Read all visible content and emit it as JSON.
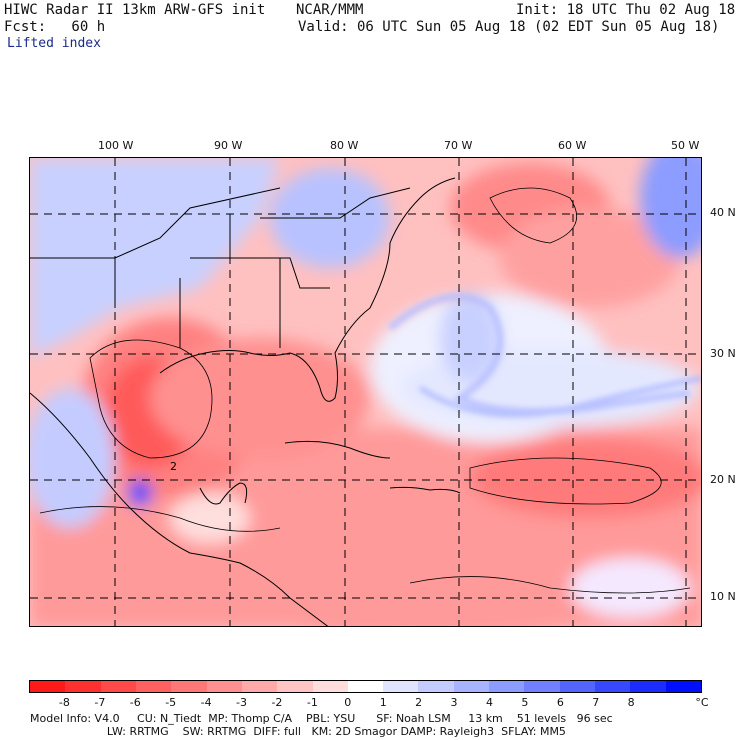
{
  "header": {
    "line1_left": "HIWC Radar II 13km ARW-GFS init",
    "line1_center": "NCAR/MMM",
    "line1_right": "Init: 18 UTC Thu 02 Aug 18",
    "line2_left": "Fcst:   60 h",
    "line2_right": "Valid: 06 UTC Sun 05 Aug 18 (02 EDT Sun 05 Aug 18)",
    "field": "Lifted index"
  },
  "map": {
    "lon_labels": [
      "100 W",
      "90 W",
      "80 W",
      "70 W",
      "60 W",
      "50 W"
    ],
    "lat_labels": [
      "40 N",
      "30 N",
      "20 N",
      "10 N"
    ],
    "contour_label": "2"
  },
  "colorbar": {
    "unit": "°C",
    "ticks": [
      "-8",
      "-7",
      "-6",
      "-5",
      "-4",
      "-3",
      "-2",
      "-1",
      "0",
      "1",
      "2",
      "3",
      "4",
      "5",
      "6",
      "7",
      "8"
    ],
    "colors": [
      "#ff1a1a",
      "#ff3030",
      "#ff4a4a",
      "#ff6060",
      "#ff7878",
      "#ff9090",
      "#ffaaaa",
      "#ffc4c4",
      "#ffdddd",
      "#ffffff",
      "#e0e4ff",
      "#c4ccff",
      "#a8b4ff",
      "#8c9cff",
      "#7080ff",
      "#5464ff",
      "#3848ff",
      "#1c2cff",
      "#0010ff"
    ]
  },
  "footer": {
    "line1": "Model Info: V4.0     CU: N_Tiedt  MP: Thomp C/A    PBL: YSU      SF: Noah LSM     13 km    51 levels   96 sec",
    "line2": "                      LW: RRTMG    SW: RRTMG  DIFF: full   KM: 2D Smagor DAMP: Rayleigh3  SFLAY: MM5"
  }
}
